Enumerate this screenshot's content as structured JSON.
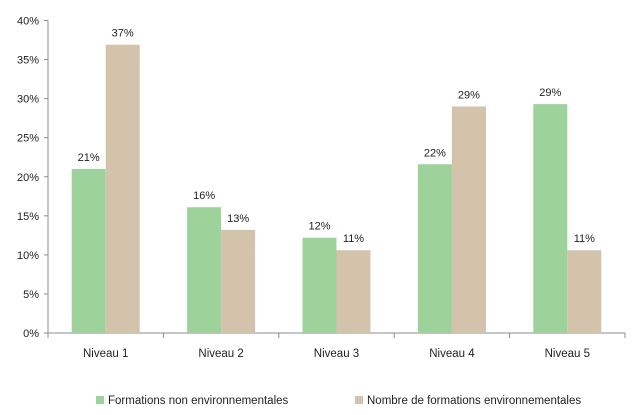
{
  "chart_data": {
    "type": "bar",
    "title": "",
    "xlabel": "",
    "ylabel": "",
    "categories": [
      "Niveau 1",
      "Niveau 2",
      "Niveau 3",
      "Niveau 4",
      "Niveau 5"
    ],
    "series": [
      {
        "name": "Formations non environnementales",
        "color": "#9dd39a",
        "values": [
          21,
          16,
          12,
          22,
          29
        ],
        "labels": [
          "21%",
          "16%",
          "12%",
          "22%",
          "29%"
        ]
      },
      {
        "name": "Nombre de formations environnementales",
        "color": "#d4c3ab",
        "values": [
          37,
          13,
          11,
          29,
          11
        ],
        "labels": [
          "37%",
          "13%",
          "11%",
          "29%",
          "11%"
        ]
      }
    ],
    "exact_values": [
      [
        21,
        16.1,
        12.2,
        21.6,
        29.3
      ],
      [
        36.9,
        13.2,
        10.6,
        29.0,
        10.6
      ]
    ],
    "ylim": [
      0,
      40
    ],
    "yticks": [
      "0%",
      "5%",
      "10%",
      "15%",
      "20%",
      "25%",
      "30%",
      "35%",
      "40%"
    ],
    "grid": false,
    "legend_position": "bottom"
  }
}
